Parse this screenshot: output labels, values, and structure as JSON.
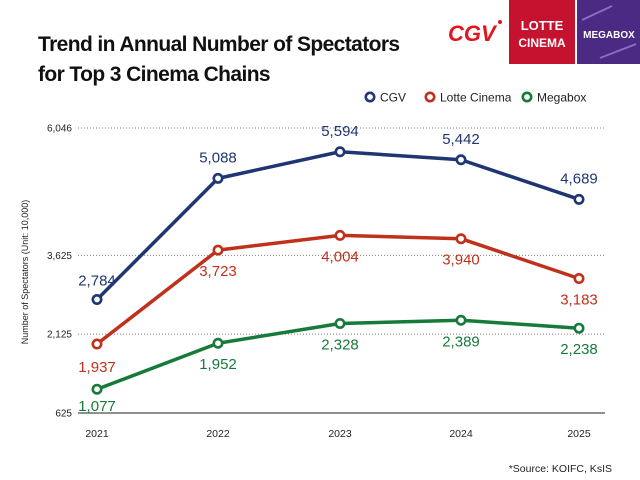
{
  "chart_data": {
    "type": "line",
    "title_lines": [
      "Trend in Annual Number of Spectators",
      "for Top 3 Cinema Chains"
    ],
    "ylabel": "Number of Spectators (Unit: 10,000)",
    "xlabel": "",
    "categories": [
      "2021",
      "2022",
      "2023",
      "2024",
      "2025"
    ],
    "yticks": [
      {
        "value": 625,
        "label": "625"
      },
      {
        "value": 2125,
        "label": "2,125"
      },
      {
        "value": 3625,
        "label": "3,625"
      },
      {
        "value": 6046,
        "label": "6,046"
      }
    ],
    "ylim": [
      625,
      6046
    ],
    "grid": true,
    "legend_position": "top-right",
    "series": [
      {
        "name": "CGV",
        "color": "#1f3673",
        "values": [
          2784,
          5088,
          5594,
          5442,
          4689
        ],
        "labels": [
          "2,784",
          "5,088",
          "5,594",
          "5,442",
          "4,689"
        ]
      },
      {
        "name": "Lotte Cinema",
        "color": "#c0311c",
        "values": [
          1937,
          3723,
          4004,
          3940,
          3183
        ],
        "labels": [
          "1,937",
          "3,723",
          "4,004",
          "3,940",
          "3,183"
        ]
      },
      {
        "name": "Megabox",
        "color": "#177a3a",
        "values": [
          1077,
          1952,
          2328,
          2389,
          2238
        ],
        "labels": [
          "1,077",
          "1,952",
          "2,328",
          "2,389",
          "2,238"
        ]
      }
    ],
    "source": "*Source: KOIFC, KsIS"
  },
  "logos": {
    "cgv": {
      "text": "CGV",
      "color": "#e3141b"
    },
    "lotte": {
      "line1": "LOTTE",
      "line2": "CINEMA",
      "color": "#c4122f"
    },
    "megabox": {
      "text": "MEGABOX",
      "color": "#4a2a82"
    }
  }
}
